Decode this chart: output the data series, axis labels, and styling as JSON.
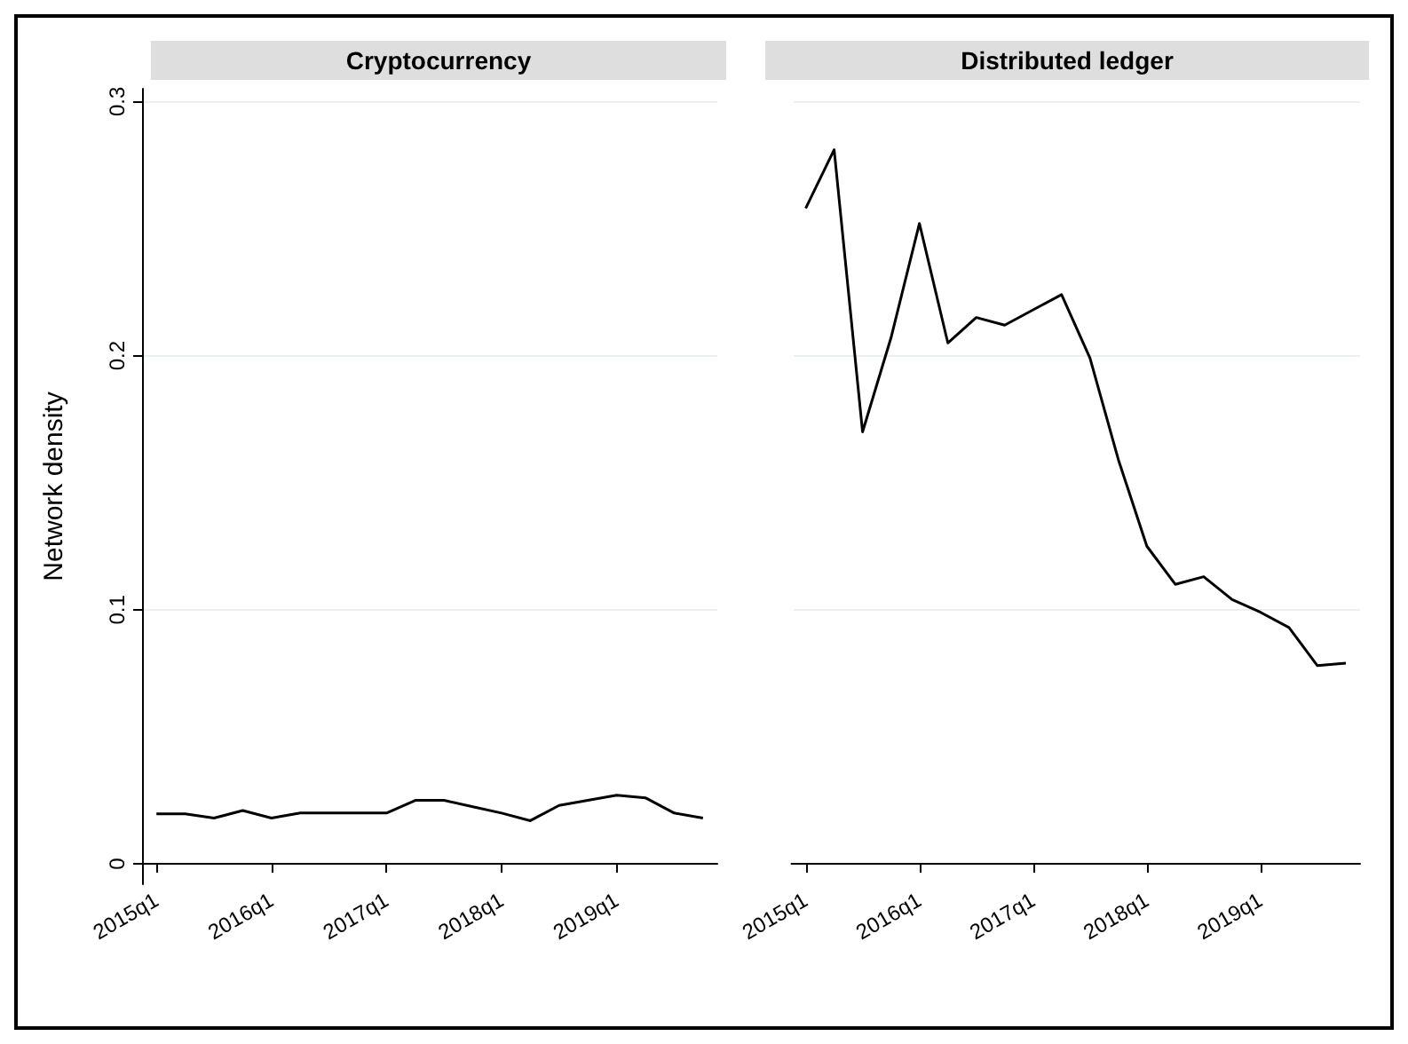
{
  "chart_data": [
    {
      "type": "line",
      "title": "Cryptocurrency",
      "ylabel": "Network density",
      "categories": [
        "2015q1",
        null,
        null,
        null,
        "2016q1",
        null,
        null,
        null,
        "2017q1",
        null,
        null,
        null,
        "2018q1",
        null,
        null,
        null,
        "2019q1",
        null,
        null,
        null
      ],
      "series": [
        {
          "color": "#000000",
          "values": [
            0.0197,
            0.0197,
            0.018,
            0.021,
            0.018,
            0.02,
            0.02,
            0.02,
            0.02,
            0.025,
            0.025,
            0.0225,
            0.02,
            0.017,
            0.023,
            0.025,
            0.027,
            0.026,
            0.02,
            0.018
          ]
        }
      ],
      "ylim": [
        -0.008,
        0.305
      ],
      "yticks": [
        0,
        0.1,
        0.2,
        0.3
      ],
      "grid": "y",
      "marker": "none",
      "line_style": "solid"
    },
    {
      "type": "line",
      "title": "Distributed ledger",
      "categories": [
        "2015q1",
        null,
        null,
        null,
        "2016q1",
        null,
        null,
        null,
        "2017q1",
        null,
        null,
        null,
        "2018q1",
        null,
        null,
        null,
        "2019q1",
        null,
        null,
        null
      ],
      "series": [
        {
          "color": "#000000",
          "values": [
            0.258,
            0.281,
            0.17,
            0.207,
            0.252,
            0.205,
            0.215,
            0.212,
            0.218,
            0.224,
            0.199,
            0.159,
            0.125,
            0.11,
            0.113,
            0.104,
            0.099,
            0.093,
            0.078,
            0.079
          ]
        }
      ],
      "ylim": [
        -0.008,
        0.305
      ],
      "yticks": [
        0,
        0.1,
        0.2,
        0.3
      ],
      "grid": "y",
      "marker": "none",
      "line_style": "solid",
      "tick_labels": "x"
    }
  ]
}
